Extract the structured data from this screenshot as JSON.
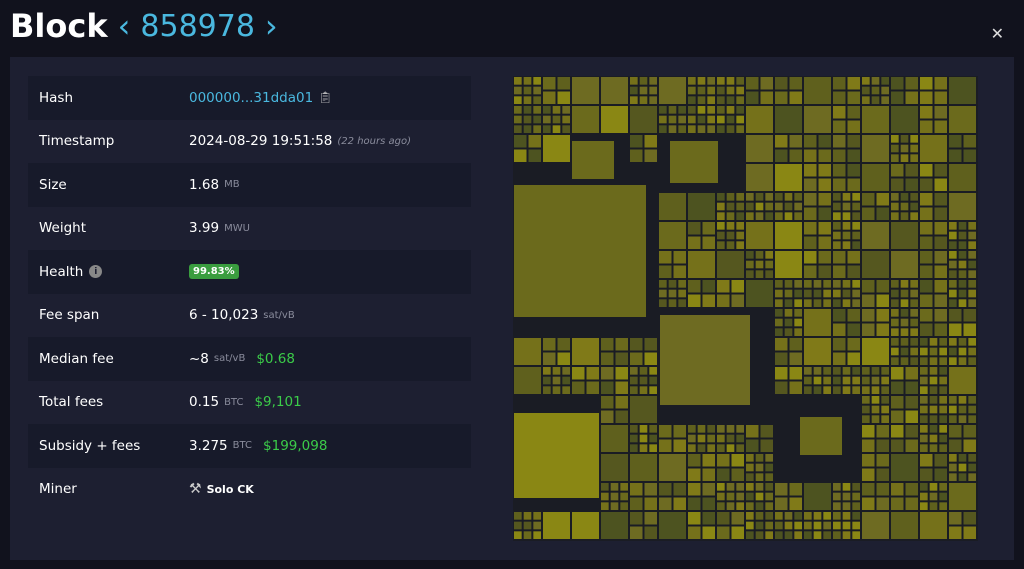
{
  "header": {
    "title": "Block",
    "block_height": "858978",
    "prev_icon": "chevron-left",
    "next_icon": "chevron-right",
    "close_icon": "close"
  },
  "details": [
    {
      "key": "hash",
      "label": "Hash",
      "value": "000000...31dda01",
      "icon": "copy-icon"
    },
    {
      "key": "timestamp",
      "label": "Timestamp",
      "value": "2024-08-29 19:51:58",
      "note": "(22 hours ago)"
    },
    {
      "key": "size",
      "label": "Size",
      "value": "1.68",
      "unit": "MB"
    },
    {
      "key": "weight",
      "label": "Weight",
      "value": "3.99",
      "unit": "MWU"
    },
    {
      "key": "health",
      "label": "Health",
      "badge": "99.83%",
      "icon": "info-icon"
    },
    {
      "key": "fee-span",
      "label": "Fee span",
      "value": "6 - 10,023",
      "unit": "sat/vB"
    },
    {
      "key": "median-fee",
      "label": "Median fee",
      "value": "~8",
      "unit": "sat/vB",
      "usd": "$0.68"
    },
    {
      "key": "total-fees",
      "label": "Total fees",
      "value": "0.15",
      "unit": "BTC",
      "usd": "$9,101"
    },
    {
      "key": "subsidy-fees",
      "label": "Subsidy + fees",
      "value": "3.275",
      "unit": "BTC",
      "usd": "$199,098"
    },
    {
      "key": "miner",
      "label": "Miner",
      "miner": "Solo CK",
      "icon": "pickaxe-icon"
    }
  ],
  "colors": {
    "accent": "#4ab8df",
    "usd": "#3bcc49",
    "health_badge": "#3a9d3f",
    "tx_base": "#6b6a1c"
  }
}
